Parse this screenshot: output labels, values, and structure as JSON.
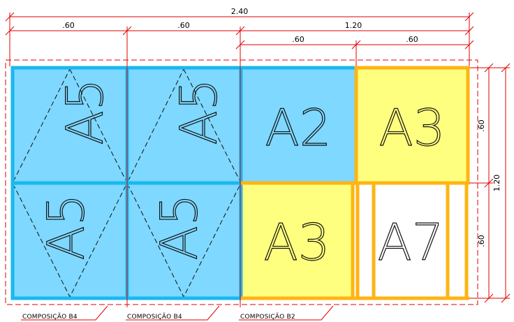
{
  "dimensions": {
    "total_width": "2.40",
    "seg_a": ".60",
    "seg_b": ".60",
    "seg_c": "1.20",
    "sub_a": ".60",
    "sub_b": ".60",
    "height_total": "1.20",
    "height_top": ".60",
    "height_bottom": ".60"
  },
  "cells": {
    "a5_tl": "A5",
    "a5_tm": "A5",
    "a5_bl": "A5",
    "a5_bm": "A5",
    "a2": "A2",
    "a3_top": "A3",
    "a3_bottom": "A3",
    "a7": "A7"
  },
  "captions": {
    "c1": "COMPOSIÇÃO B4",
    "c2": "COMPOSIÇÃO B4",
    "c3": "COMPOSIÇÃO B2"
  },
  "colors": {
    "blue_fill": "#7fd8ff",
    "blue_border": "#1ab8ef",
    "yellow_fill": "#ffff7f",
    "orange_border": "#ffb414",
    "dim_red": "#e00000"
  }
}
